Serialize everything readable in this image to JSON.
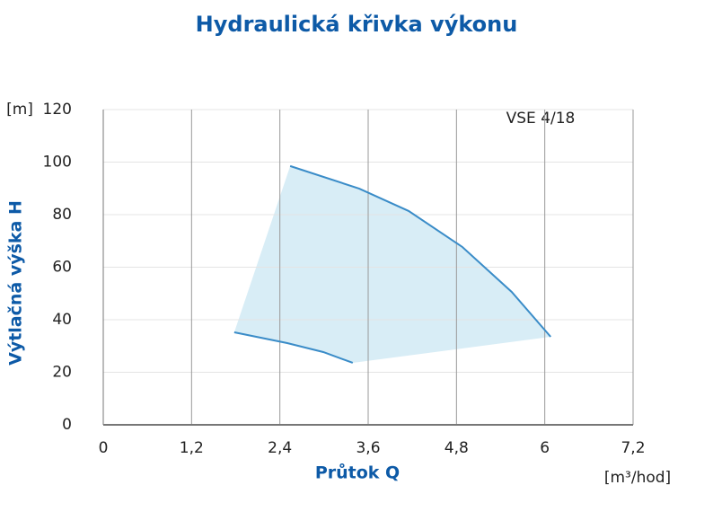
{
  "chart_data": {
    "type": "line",
    "title": "Hydraulická křivka výkonu",
    "annotation": "VSE 4/18",
    "x_label": "Průtok Q",
    "x_unit": "[m³/hod]",
    "y_label": "Výtlačná výška H",
    "y_unit": "[m]",
    "xlim": [
      0,
      7.2
    ],
    "xticks": [
      0,
      {
        "value": 1.2,
        "label": "1,2"
      },
      {
        "value": 2.4,
        "label": "2,4"
      },
      {
        "value": 3.6,
        "label": "3,6"
      },
      {
        "value": 4.8,
        "label": "4,8"
      },
      6,
      {
        "value": 7.2,
        "label": "7,2"
      }
    ],
    "ylim": [
      0,
      120
    ],
    "yticks": [
      0,
      20,
      40,
      60,
      80,
      100,
      120
    ],
    "grid": true,
    "fill_color": "#d8edf6",
    "series": [
      {
        "color": "#3a8cc8",
        "x": [
          2.54,
          3.48,
          4.15,
          4.88,
          5.55,
          6.08
        ],
        "values": [
          98.5,
          89.9,
          81.4,
          67.7,
          50.6,
          33.5
        ]
      },
      {
        "color": "#3a8cc8",
        "x": [
          1.78,
          2.5,
          2.99,
          3.39
        ],
        "values": [
          35.2,
          31.1,
          27.7,
          23.6
        ]
      }
    ]
  }
}
